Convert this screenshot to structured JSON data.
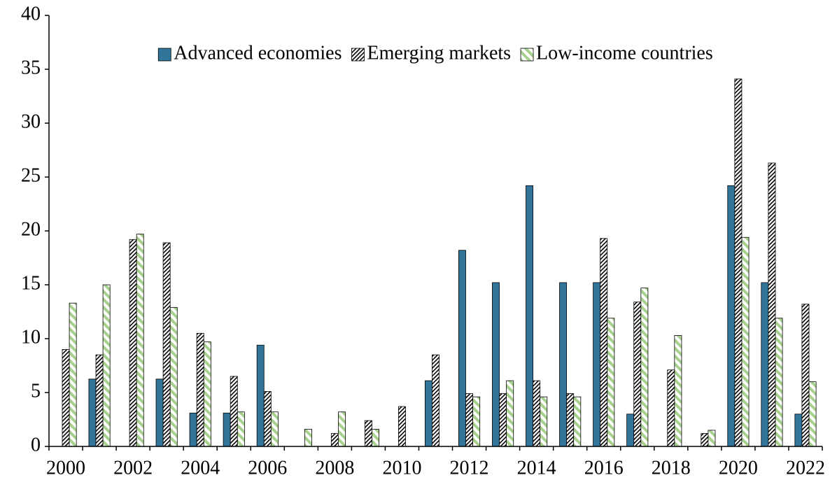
{
  "chart_data": {
    "type": "bar",
    "categories": [
      "2000",
      null,
      "2002",
      null,
      "2004",
      null,
      "2006",
      null,
      "2008",
      null,
      "2010",
      null,
      "2012",
      null,
      "2014",
      null,
      "2016",
      null,
      "2018",
      null,
      "2020",
      null,
      "2022"
    ],
    "series": [
      {
        "name": "Advanced economies",
        "color": "#31759b",
        "pattern": "solid",
        "values": [
          0,
          6.25,
          0,
          6.25,
          3.1,
          3.1,
          9.4,
          0,
          0,
          0,
          0,
          6.1,
          18.2,
          15.2,
          24.2,
          15.2,
          15.2,
          3.0,
          0,
          0,
          24.2,
          15.2,
          3.0
        ]
      },
      {
        "name": "Emerging markets",
        "color": "#000000",
        "pattern": "hatch",
        "values": [
          9.0,
          8.5,
          19.2,
          18.9,
          10.5,
          6.5,
          5.1,
          0,
          1.2,
          2.4,
          3.7,
          8.5,
          4.9,
          4.9,
          6.1,
          4.9,
          19.3,
          13.4,
          7.1,
          1.2,
          34.1,
          26.3,
          13.2
        ]
      },
      {
        "name": "Low-income countries",
        "color": "#a9d18e",
        "pattern": "stripe",
        "values": [
          13.3,
          15.0,
          19.7,
          12.9,
          9.7,
          3.2,
          3.2,
          1.6,
          3.2,
          1.6,
          0,
          0,
          4.6,
          6.1,
          4.6,
          4.6,
          11.9,
          14.7,
          10.3,
          1.5,
          19.4,
          11.9,
          6.0
        ]
      }
    ],
    "ylim": [
      0,
      40
    ],
    "yticks": [
      0,
      5,
      10,
      15,
      20,
      25,
      30,
      35,
      40
    ],
    "grid": false,
    "legend": "top"
  }
}
